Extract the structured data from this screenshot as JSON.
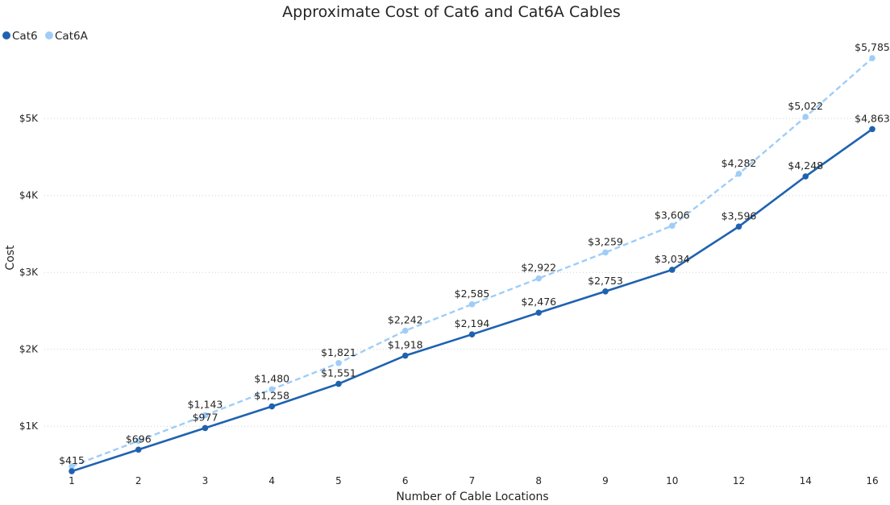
{
  "chart_data": {
    "type": "line",
    "title": "Approximate Cost of Cat6 and Cat6A Cables",
    "xlabel": "Number of Cable Locations",
    "ylabel": "Cost",
    "categories": [
      "1",
      "2",
      "3",
      "4",
      "5",
      "6",
      "7",
      "8",
      "9",
      "10",
      "12",
      "14",
      "16"
    ],
    "y_ticks": [
      {
        "value": 1000,
        "label": "$1K"
      },
      {
        "value": 2000,
        "label": "$2K"
      },
      {
        "value": 3000,
        "label": "$3K"
      },
      {
        "value": 4000,
        "label": "$4K"
      },
      {
        "value": 5000,
        "label": "$5K"
      }
    ],
    "ylim": [
      395,
      5850
    ],
    "grid": true,
    "legend_position": "top-left",
    "series": [
      {
        "name": "Cat6",
        "color": "#1f62b0",
        "style": "solid",
        "values": [
          415,
          696,
          977,
          1258,
          1551,
          1918,
          2194,
          2476,
          2753,
          3034,
          3596,
          4248,
          4863
        ],
        "labels": [
          "$415",
          "$696",
          "$977",
          "$1,258",
          "$1,551",
          "$1,918",
          "$2,194",
          "$2,476",
          "$2,753",
          "$3,034",
          "$3,596",
          "$4,248",
          "$4,863"
        ]
      },
      {
        "name": "Cat6A",
        "color": "#9fcdf8",
        "style": "dashed",
        "values": [
          480,
          810,
          1143,
          1480,
          1821,
          2242,
          2585,
          2922,
          3259,
          3606,
          4282,
          5022,
          5785
        ],
        "labels": [
          null,
          null,
          "$1,143",
          "$1,480",
          "$1,821",
          "$2,242",
          "$2,585",
          "$2,922",
          "$3,259",
          "$3,606",
          "$4,282",
          "$5,022",
          "$5,785"
        ]
      }
    ]
  }
}
